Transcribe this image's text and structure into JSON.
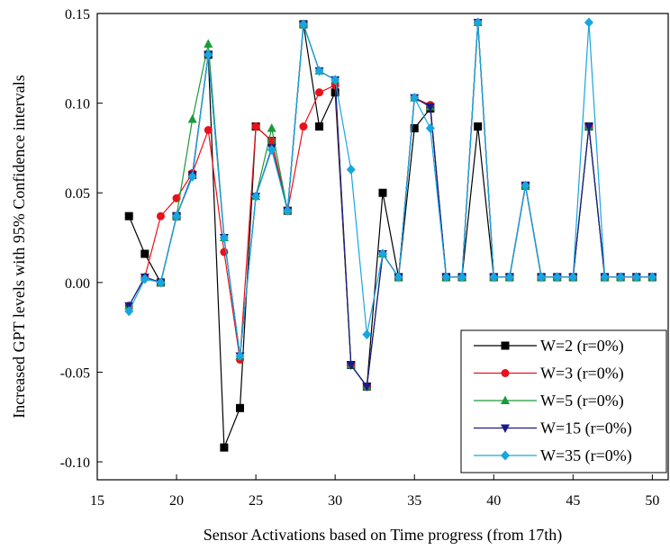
{
  "chart_data": {
    "type": "line",
    "title": "",
    "xlabel": "Sensor Activations based on Time progress (from 17th)",
    "ylabel": "Increased GPT levels with 95% Confidence intervals",
    "xlim": [
      15,
      51
    ],
    "ylim": [
      -0.11,
      0.15
    ],
    "xticks": [
      15,
      20,
      25,
      30,
      35,
      40,
      45,
      50
    ],
    "yticks": [
      -0.1,
      -0.05,
      0.0,
      0.05,
      0.1,
      0.15
    ],
    "ytick_labels": [
      "-0.10",
      "-0.05",
      "0.00",
      "0.05",
      "0.10",
      "0.15"
    ],
    "grid": false,
    "legend_position": "bottom-right",
    "x": [
      17,
      18,
      19,
      20,
      21,
      22,
      23,
      24,
      25,
      26,
      27,
      28,
      29,
      30,
      31,
      32,
      33,
      34,
      35,
      36,
      37,
      38,
      39,
      40,
      41,
      42,
      43,
      44,
      45,
      46,
      47,
      48,
      49,
      50
    ],
    "series": [
      {
        "name": "W=2 (r=0%)",
        "color": "#000000",
        "marker": "square",
        "values": [
          0.037,
          0.016,
          0.0,
          0.037,
          0.06,
          0.127,
          -0.092,
          -0.07,
          0.087,
          0.079,
          0.04,
          0.144,
          0.087,
          0.106,
          -0.046,
          -0.058,
          0.05,
          0.003,
          0.086,
          0.097,
          0.003,
          0.003,
          0.087,
          0.003,
          0.003,
          0.054,
          0.003,
          0.003,
          0.003,
          0.087,
          0.003,
          0.003,
          0.003,
          0.003
        ]
      },
      {
        "name": "W=3 (r=0%)",
        "color": "#e8121c",
        "marker": "circle",
        "values": [
          -0.013,
          0.003,
          0.037,
          0.047,
          0.061,
          0.085,
          0.017,
          -0.043,
          0.087,
          0.079,
          0.04,
          0.087,
          0.106,
          0.11,
          -0.046,
          -0.058,
          0.016,
          0.003,
          0.103,
          0.099,
          0.003,
          0.003,
          0.145,
          0.003,
          0.003,
          0.054,
          0.003,
          0.003,
          0.003,
          0.087,
          0.003,
          0.003,
          0.003,
          0.003
        ]
      },
      {
        "name": "W=5 (r=0%)",
        "color": "#1a9a3a",
        "marker": "triangle-up",
        "values": [
          -0.013,
          0.003,
          0.0,
          0.037,
          0.091,
          0.133,
          0.025,
          -0.041,
          0.048,
          0.086,
          0.04,
          0.144,
          0.118,
          0.113,
          -0.046,
          -0.058,
          0.016,
          0.003,
          0.103,
          0.098,
          0.003,
          0.003,
          0.145,
          0.003,
          0.003,
          0.054,
          0.003,
          0.003,
          0.003,
          0.087,
          0.003,
          0.003,
          0.003,
          0.003
        ]
      },
      {
        "name": "W=15 (r=0%)",
        "color": "#1a1a8a",
        "marker": "triangle-down",
        "values": [
          -0.013,
          0.003,
          0.0,
          0.037,
          0.06,
          0.127,
          0.025,
          -0.041,
          0.048,
          0.075,
          0.04,
          0.144,
          0.118,
          0.113,
          -0.046,
          -0.058,
          0.016,
          0.003,
          0.103,
          0.098,
          0.003,
          0.003,
          0.145,
          0.003,
          0.003,
          0.054,
          0.003,
          0.003,
          0.003,
          0.087,
          0.003,
          0.003,
          0.003,
          0.003
        ]
      },
      {
        "name": "W=35 (r=0%)",
        "color": "#18a6de",
        "marker": "diamond",
        "values": [
          -0.016,
          0.002,
          0.0,
          0.037,
          0.059,
          0.127,
          0.025,
          -0.041,
          0.048,
          0.074,
          0.04,
          0.144,
          0.118,
          0.113,
          0.063,
          -0.029,
          0.016,
          0.003,
          0.103,
          0.086,
          0.003,
          0.003,
          0.145,
          0.003,
          0.003,
          0.054,
          0.003,
          0.003,
          0.003,
          0.145,
          0.003,
          0.003,
          0.003,
          0.003
        ]
      }
    ]
  }
}
